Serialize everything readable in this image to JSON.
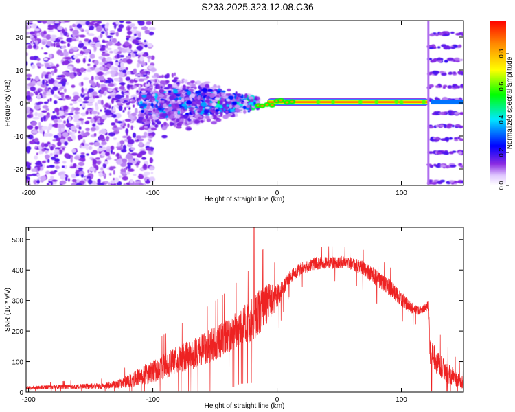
{
  "title": "S233.2025.323.12.08.C36",
  "colors": {
    "snr_line": "#ee2222",
    "axis": "#000000",
    "background": "#ffffff"
  },
  "chart_data": [
    {
      "type": "heatmap",
      "name": "spectrogram",
      "xlabel": "Height of straight line (km)",
      "ylabel": "Frequency (Hz)",
      "xlim": [
        -202,
        150
      ],
      "ylim": [
        -25,
        25
      ],
      "xticks": [
        -200,
        -100,
        0,
        100
      ],
      "xtick_labels": [
        "-200",
        "-100",
        "0",
        "100"
      ],
      "yticks": [
        -20,
        -10,
        0,
        10,
        20
      ],
      "ytick_labels": [
        "-20",
        "-10",
        "0",
        "10",
        "20"
      ],
      "grid": false,
      "colorbar": {
        "label": "Normalized spectral amplitude",
        "range": [
          0,
          1
        ],
        "ticks": [
          0,
          0.2,
          0.4,
          0.6,
          0.8
        ],
        "tick_labels": [
          "0.0",
          "0.2",
          "0.4",
          "0.6",
          "0.8"
        ]
      },
      "regions": [
        {
          "x": [
            -202,
            -110
          ],
          "freq": [
            -25,
            25
          ],
          "amplitude": 0.12,
          "description": "broadband noise"
        },
        {
          "x": [
            -110,
            -15
          ],
          "freq": [
            -10,
            10
          ],
          "amplitude": 0.2,
          "description": "narrowing scatter"
        },
        {
          "x": [
            -15,
            122
          ],
          "freq": [
            -0.5,
            0.5
          ],
          "amplitude": 0.95,
          "description": "strong carrier line"
        },
        {
          "x": [
            122,
            150
          ],
          "freq": [
            -25,
            25
          ],
          "amplitude": 0.15,
          "description": "harmonic bands"
        }
      ],
      "carrier_frequency": 0.3,
      "harmonic_band_frequencies": [
        -24,
        -19,
        -15,
        -11,
        -7,
        -3,
        1,
        5,
        9,
        13,
        17,
        21
      ]
    },
    {
      "type": "line",
      "name": "snr",
      "xlabel": "Height of straight line (km)",
      "ylabel": "SNR (10 * v/v)",
      "xlim": [
        -202,
        150
      ],
      "ylim": [
        0,
        540
      ],
      "xticks": [
        -200,
        -100,
        0,
        100
      ],
      "xtick_labels": [
        "-200",
        "-100",
        "0",
        "100"
      ],
      "yticks": [
        0,
        100,
        200,
        300,
        400,
        500
      ],
      "ytick_labels": [
        "0",
        "100",
        "200",
        "300",
        "400",
        "500"
      ],
      "grid": false,
      "series": [
        {
          "name": "SNR",
          "x": [
            -202,
            -180,
            -160,
            -140,
            -130,
            -120,
            -110,
            -100,
            -90,
            -80,
            -70,
            -60,
            -50,
            -40,
            -30,
            -20,
            -15,
            -10,
            -5,
            0,
            5,
            10,
            20,
            30,
            40,
            50,
            60,
            70,
            80,
            90,
            100,
            105,
            110,
            115,
            120,
            122,
            123,
            130,
            140,
            150
          ],
          "y": [
            15,
            18,
            20,
            22,
            28,
            40,
            58,
            75,
            95,
            115,
            130,
            150,
            170,
            195,
            225,
            250,
            275,
            300,
            310,
            320,
            350,
            380,
            410,
            425,
            430,
            430,
            425,
            410,
            380,
            350,
            310,
            290,
            275,
            270,
            280,
            290,
            140,
            100,
            60,
            35
          ],
          "noise": [
            8,
            10,
            12,
            14,
            18,
            30,
            45,
            55,
            60,
            65,
            70,
            75,
            80,
            85,
            90,
            100,
            110,
            110,
            80,
            60,
            40,
            30,
            30,
            30,
            30,
            30,
            30,
            35,
            40,
            40,
            35,
            30,
            25,
            20,
            20,
            20,
            60,
            60,
            45,
            30
          ]
        }
      ],
      "spikes": [
        {
          "x": -18.5,
          "y": 540
        }
      ]
    }
  ]
}
